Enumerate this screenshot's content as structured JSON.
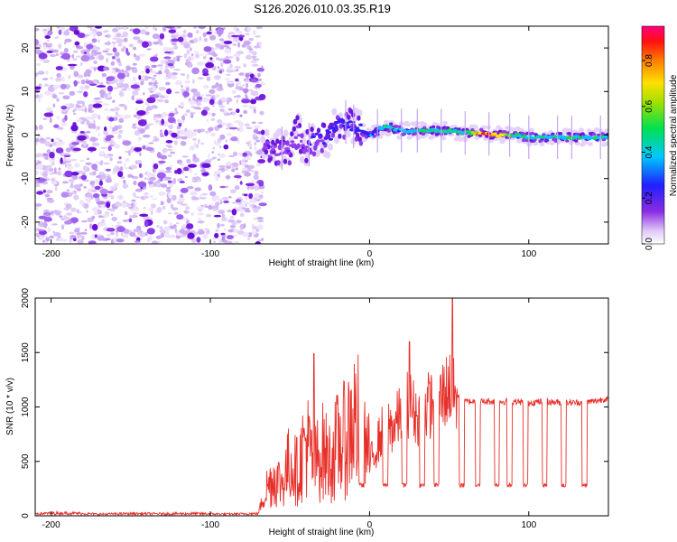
{
  "title": "S126.2026.010.03.35.R19",
  "chart_data": [
    {
      "type": "heatmap",
      "xlabel": "Height of straight line (km)",
      "ylabel": "Frequency (Hz)",
      "xlim": [
        -210,
        150
      ],
      "ylim": [
        -25,
        25
      ],
      "xticks": [
        -200,
        -100,
        0,
        100
      ],
      "yticks": [
        20,
        10,
        0,
        -10,
        -20
      ],
      "noise_region_x": [
        -210,
        -67
      ],
      "signal_onset_x": -67,
      "ridge": {
        "x": [
          -67,
          -62,
          -55,
          -50,
          -45,
          -40,
          -35,
          -30,
          -25,
          -20,
          -15,
          -10,
          -5,
          0,
          10,
          20,
          30,
          40,
          50,
          60,
          70,
          80,
          90,
          100,
          110,
          120,
          130,
          140,
          150
        ],
        "freq": [
          -2,
          -4,
          -3,
          -3,
          1,
          -3,
          -1,
          -1,
          0,
          2,
          3,
          2,
          1,
          0,
          2,
          1,
          1,
          1,
          1,
          0.5,
          0.5,
          0,
          0,
          -0.5,
          -0.5,
          -0.5,
          -0.5,
          -0.5,
          -0.5
        ],
        "amplitude": [
          0.15,
          0.2,
          0.25,
          0.2,
          0.2,
          0.25,
          0.3,
          0.3,
          0.3,
          0.35,
          0.35,
          0.35,
          0.35,
          0.35,
          0.5,
          0.45,
          0.5,
          0.55,
          0.55,
          0.6,
          0.95,
          0.9,
          0.6,
          0.55,
          0.5,
          0.5,
          0.5,
          0.5,
          0.5
        ]
      },
      "colorbar": {
        "label": "Normalized spectral amplitude",
        "range": [
          0,
          0.95
        ],
        "ticks": [
          "0.0",
          "0.2",
          "0.4",
          "0.6",
          "0.8"
        ]
      }
    },
    {
      "type": "line",
      "xlabel": "Height of straight line (km)",
      "ylabel": "SNR (10 * v/v)",
      "xlim": [
        -210,
        150
      ],
      "ylim": [
        0,
        2000
      ],
      "xticks": [
        -200,
        -100,
        0,
        100
      ],
      "yticks": [
        0,
        500,
        1000,
        1500,
        2000
      ],
      "series": [
        {
          "name": "SNR",
          "color": "#e8302a",
          "x": [
            -210,
            -190,
            -170,
            -150,
            -130,
            -110,
            -90,
            -70,
            -65,
            -60,
            -55,
            -50,
            -45,
            -40,
            -35,
            -30,
            -25,
            -20,
            -15,
            -10,
            -5,
            0,
            5,
            10,
            15,
            20,
            25,
            30,
            35,
            40,
            45,
            50,
            55,
            60,
            70,
            80,
            90,
            100,
            110,
            120,
            130,
            140,
            150
          ],
          "y": [
            20,
            25,
            15,
            20,
            18,
            20,
            15,
            20,
            250,
            350,
            300,
            500,
            400,
            700,
            450,
            600,
            500,
            650,
            700,
            900,
            800,
            500,
            700,
            900,
            850,
            1000,
            1100,
            950,
            1050,
            1100,
            1150,
            1250,
            1100,
            1050,
            1050,
            1050,
            1050,
            1040,
            1050,
            1040,
            1040,
            1050,
            1080
          ]
        }
      ],
      "peak_markers": [
        {
          "x": -35,
          "y": 1490
        },
        {
          "x": 52,
          "y": 2000
        },
        {
          "x": 25,
          "y": 1600
        }
      ],
      "dropouts_x": [
        -5,
        10,
        22,
        33,
        42,
        58,
        68,
        80,
        88,
        98,
        110,
        122,
        135
      ]
    }
  ]
}
